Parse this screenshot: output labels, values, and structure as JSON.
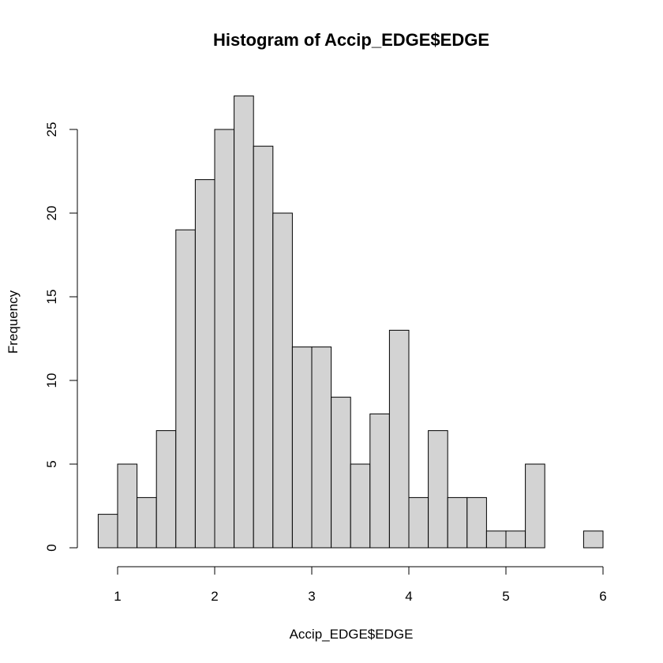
{
  "chart_data": {
    "type": "bar",
    "title": "Histogram of Accip_EDGE$EDGE",
    "xlabel": "Accip_EDGE$EDGE",
    "ylabel": "Frequency",
    "bin_width": 0.2,
    "bin_start": 0.8,
    "values": [
      2,
      5,
      3,
      7,
      19,
      22,
      25,
      27,
      24,
      20,
      12,
      12,
      9,
      5,
      8,
      13,
      3,
      7,
      3,
      3,
      1,
      1,
      5,
      0,
      0,
      1
    ],
    "xlim": [
      0.8,
      6.0
    ],
    "ylim": [
      0,
      27
    ],
    "x_ticks": [
      1,
      2,
      3,
      4,
      5,
      6
    ],
    "x_tick_labels": [
      "1",
      "2",
      "3",
      "4",
      "5",
      "6"
    ],
    "y_ticks": [
      0,
      5,
      10,
      15,
      20,
      25
    ],
    "y_tick_labels": [
      "0",
      "5",
      "10",
      "15",
      "20",
      "25"
    ],
    "colors": {
      "bar_fill": "#d3d3d3",
      "bar_stroke": "#000000"
    },
    "grid": false,
    "legend": "none"
  }
}
